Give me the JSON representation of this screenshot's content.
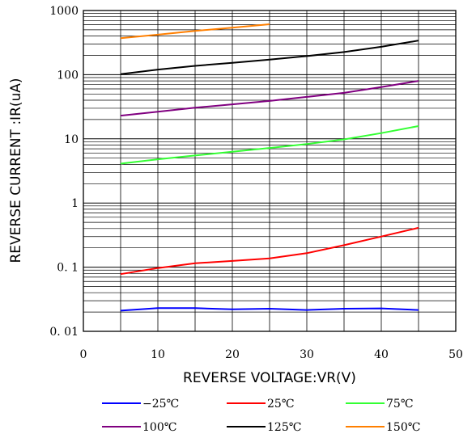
{
  "chart_data": {
    "type": "line",
    "title": "",
    "xlabel": "REVERSE VOLTAGE:VR(V)",
    "ylabel": "REVERSE CURRENT :IR(uA)",
    "xlim": [
      0,
      50
    ],
    "ylim": [
      0.01,
      1000
    ],
    "yscale": "log",
    "grid": true,
    "legend_position": "bottom",
    "x_ticks": [
      0,
      10,
      20,
      30,
      40,
      50
    ],
    "x_tick_labels": [
      "0",
      "10",
      "20",
      "30",
      "40",
      "50"
    ],
    "y_ticks": [
      0.01,
      0.1,
      1,
      10,
      100,
      1000
    ],
    "y_tick_labels": [
      "0. 01",
      "0. 1",
      "1",
      "10",
      "100",
      "1000"
    ],
    "series": [
      {
        "name": "−25℃",
        "color": "#0000ff",
        "x": [
          5,
          10,
          15,
          20,
          25,
          30,
          35,
          40,
          45
        ],
        "y": [
          0.021,
          0.023,
          0.023,
          0.022,
          0.0225,
          0.0215,
          0.0225,
          0.0228,
          0.0215
        ]
      },
      {
        "name": "25℃",
        "color": "#ff0000",
        "x": [
          5,
          10,
          15,
          20,
          25,
          30,
          35,
          40,
          45
        ],
        "y": [
          0.078,
          0.097,
          0.115,
          0.125,
          0.137,
          0.165,
          0.22,
          0.3,
          0.41
        ]
      },
      {
        "name": "75℃",
        "color": "#33ff33",
        "x": [
          5,
          10,
          15,
          20,
          25,
          30,
          35,
          40,
          45
        ],
        "y": [
          4.1,
          4.8,
          5.5,
          6.3,
          7.2,
          8.3,
          9.8,
          12.3,
          15.8
        ]
      },
      {
        "name": "100℃",
        "color": "#800080",
        "x": [
          5,
          10,
          15,
          20,
          25,
          30,
          35,
          40,
          45
        ],
        "y": [
          23,
          26.5,
          30.5,
          34.5,
          39,
          45,
          52,
          64,
          80
        ]
      },
      {
        "name": "125℃",
        "color": "#000000",
        "x": [
          5,
          10,
          15,
          20,
          25,
          30,
          35,
          40,
          45
        ],
        "y": [
          102,
          120,
          137,
          153,
          172,
          195,
          225,
          272,
          340
        ]
      },
      {
        "name": "150℃",
        "color": "#ff7f00",
        "x": [
          5,
          10,
          15,
          20,
          25
        ],
        "y": [
          370,
          420,
          480,
          540,
          610
        ]
      }
    ]
  }
}
